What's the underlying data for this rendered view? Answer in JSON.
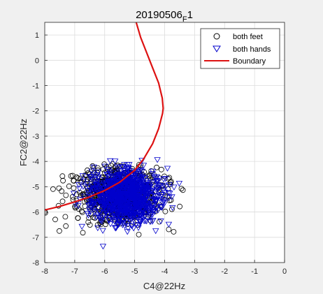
{
  "figure": {
    "background": "#f0f0f0",
    "axes_background": "#ffffff"
  },
  "chart_data": {
    "type": "scatter",
    "title": "20190506",
    "title_subscript": "F",
    "title_suffix": "1",
    "xlabel": "C4@22Hz",
    "ylabel": "FC2@22Hz",
    "xlim": [
      -8,
      0
    ],
    "ylim": [
      -8,
      1.5
    ],
    "xticks": [
      -8,
      -7,
      -6,
      -5,
      -4,
      -3,
      -2,
      -1,
      0
    ],
    "yticks": [
      -8,
      -7,
      -6,
      -5,
      -4,
      -3,
      -2,
      -1,
      0,
      1
    ],
    "grid": true,
    "legend_position": "top-right",
    "series": [
      {
        "name": "both feet",
        "marker": "circle",
        "color": "#000000",
        "cluster": {
          "center": [
            -5.5,
            -5.3
          ],
          "x_range": [
            -8.0,
            -3.3
          ],
          "y_range": [
            -7.9,
            -4.1
          ]
        }
      },
      {
        "name": "both hands",
        "marker": "triangle-down",
        "color": "#0000cc",
        "cluster": {
          "center": [
            -5.3,
            -5.4
          ],
          "x_range": [
            -7.4,
            -3.4
          ],
          "y_range": [
            -7.8,
            -3.9
          ]
        }
      },
      {
        "name": "Boundary",
        "marker": "line",
        "color": "#dd1111",
        "points": [
          [
            -8.0,
            -5.92
          ],
          [
            -7.5,
            -5.78
          ],
          [
            -7.0,
            -5.6
          ],
          [
            -6.5,
            -5.4
          ],
          [
            -6.0,
            -5.15
          ],
          [
            -5.5,
            -4.82
          ],
          [
            -5.0,
            -4.35
          ],
          [
            -4.7,
            -3.9
          ],
          [
            -4.4,
            -3.3
          ],
          [
            -4.2,
            -2.7
          ],
          [
            -4.07,
            -2.1
          ],
          [
            -4.05,
            -1.9
          ],
          [
            -4.08,
            -1.5
          ],
          [
            -4.2,
            -0.9
          ],
          [
            -4.4,
            -0.3
          ],
          [
            -4.6,
            0.3
          ],
          [
            -4.8,
            0.9
          ],
          [
            -4.95,
            1.5
          ]
        ]
      }
    ]
  }
}
